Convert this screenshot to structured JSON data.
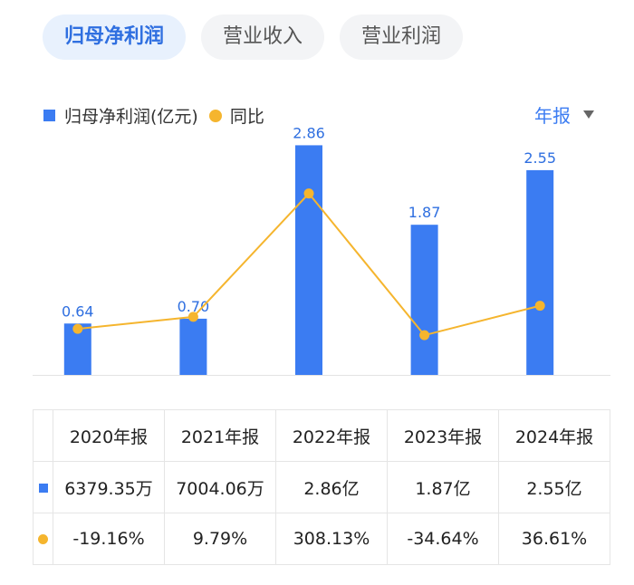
{
  "tabs": [
    {
      "label": "归母净利润",
      "active": true
    },
    {
      "label": "营业收入",
      "active": false
    },
    {
      "label": "营业利润",
      "active": false
    }
  ],
  "legend": {
    "bar_label": "归母净利润(亿元)",
    "line_label": "同比"
  },
  "period_selector": {
    "label": "年报"
  },
  "colors": {
    "bar": "#3b7cf2",
    "line": "#f5b52e",
    "positive": "#e0454b",
    "negative": "#1e9e5e",
    "accent": "#2f6fe0"
  },
  "chart_data": {
    "type": "bar",
    "categories": [
      "2020年报",
      "2021年报",
      "2022年报",
      "2023年报",
      "2024年报"
    ],
    "series": [
      {
        "name": "归母净利润(亿元)",
        "type": "bar",
        "values": [
          0.64,
          0.7,
          2.86,
          1.87,
          2.55
        ],
        "labels": [
          "0.64",
          "0.70",
          "2.86",
          "1.87",
          "2.55"
        ]
      },
      {
        "name": "同比",
        "type": "line",
        "values": [
          -19.16,
          9.79,
          308.13,
          -34.64,
          36.61
        ]
      }
    ],
    "legend": "top-left",
    "grid": false
  },
  "table": {
    "headers": [
      "2020年报",
      "2021年报",
      "2022年报",
      "2023年报",
      "2024年报"
    ],
    "profit_row": [
      "6379.35万",
      "7004.06万",
      "2.86亿",
      "1.87亿",
      "2.55亿"
    ],
    "yoy_row": [
      "-19.16%",
      "9.79%",
      "308.13%",
      "-34.64%",
      "36.61%"
    ]
  }
}
